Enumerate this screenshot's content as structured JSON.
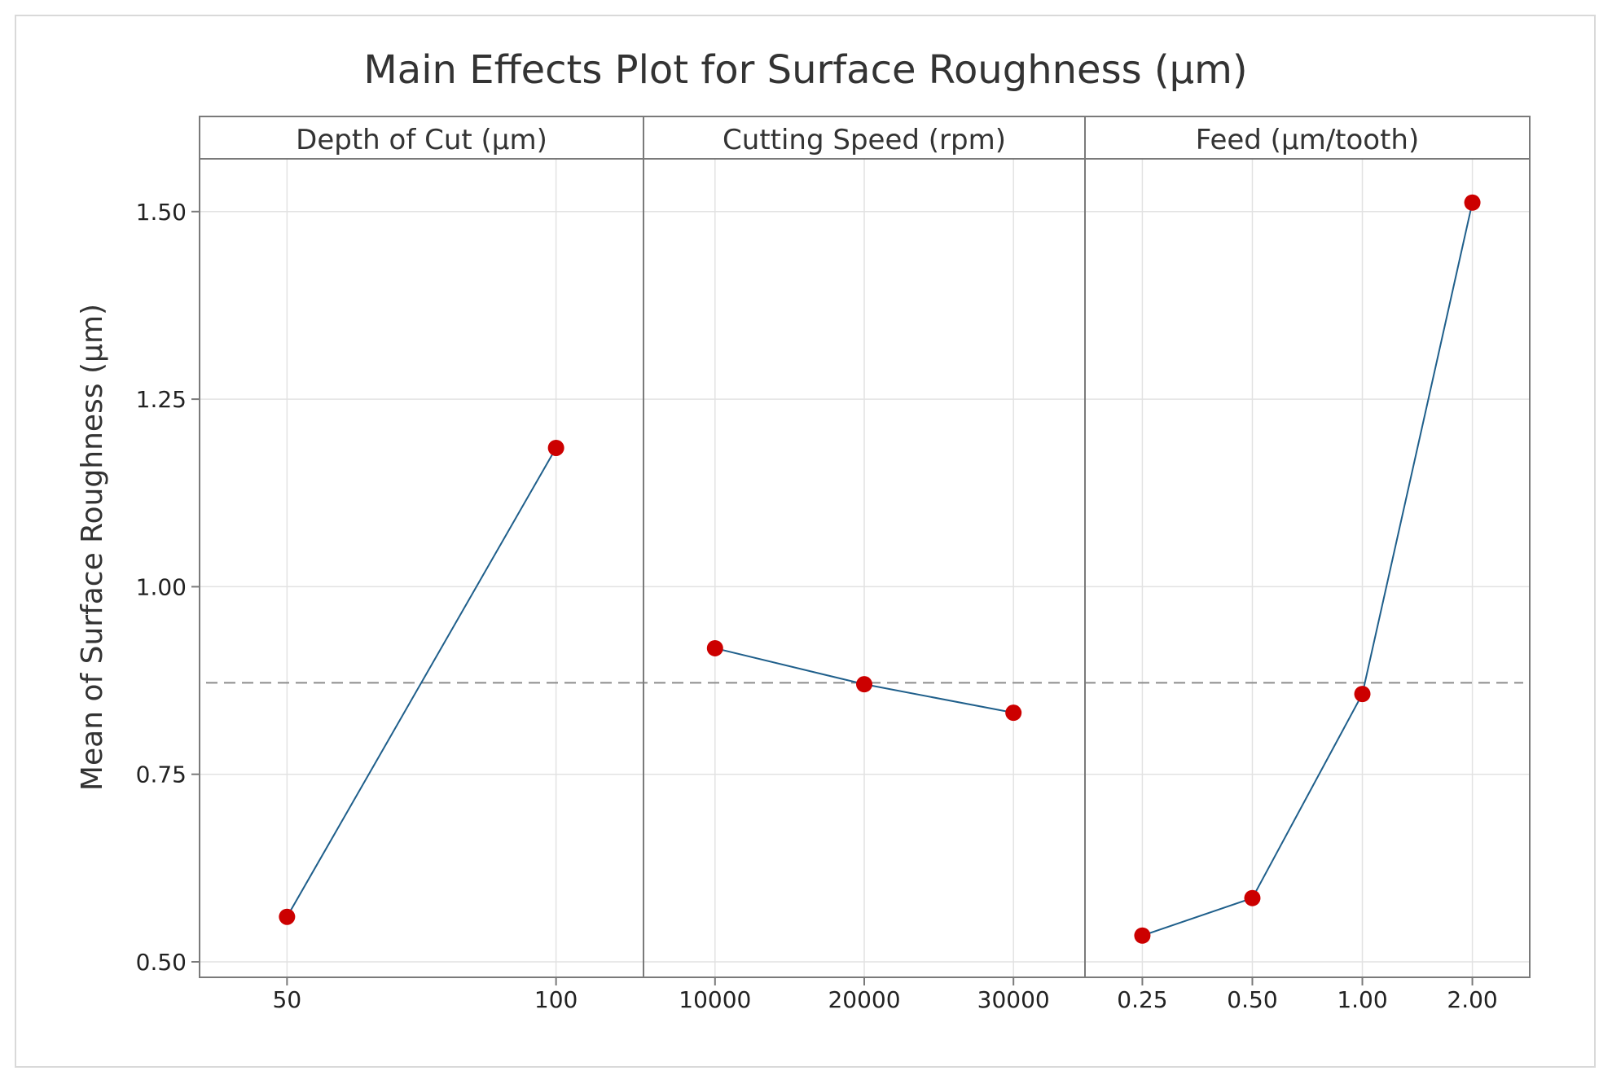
{
  "chart_data": {
    "type": "line",
    "title": "Main Effects Plot for Surface Roughness (µm)",
    "ylabel": "Mean of Surface Roughness (µm)",
    "ylim": [
      0.48,
      1.58
    ],
    "yticks": [
      "0.50",
      "0.75",
      "1.00",
      "1.25",
      "1.50"
    ],
    "ytick_values": [
      0.5,
      0.75,
      1.0,
      1.25,
      1.5
    ],
    "reference_mean": 0.872,
    "grid": true,
    "panels": [
      {
        "name": "Depth of Cut (µm)",
        "categories": [
          "50",
          "100"
        ],
        "values": [
          0.56,
          1.185
        ]
      },
      {
        "name": "Cutting Speed (rpm)",
        "categories": [
          "10000",
          "20000",
          "30000"
        ],
        "values": [
          0.918,
          0.87,
          0.832
        ]
      },
      {
        "name": "Feed (µm/tooth)",
        "categories": [
          "0.25",
          "0.50",
          "1.00",
          "2.00"
        ],
        "values": [
          0.535,
          0.585,
          0.857,
          1.512
        ]
      }
    ]
  },
  "colors": {
    "line": "#1f5f8b",
    "marker": "#cc0000",
    "reference": "#8c8c8c",
    "grid": "#e2e2e2"
  }
}
